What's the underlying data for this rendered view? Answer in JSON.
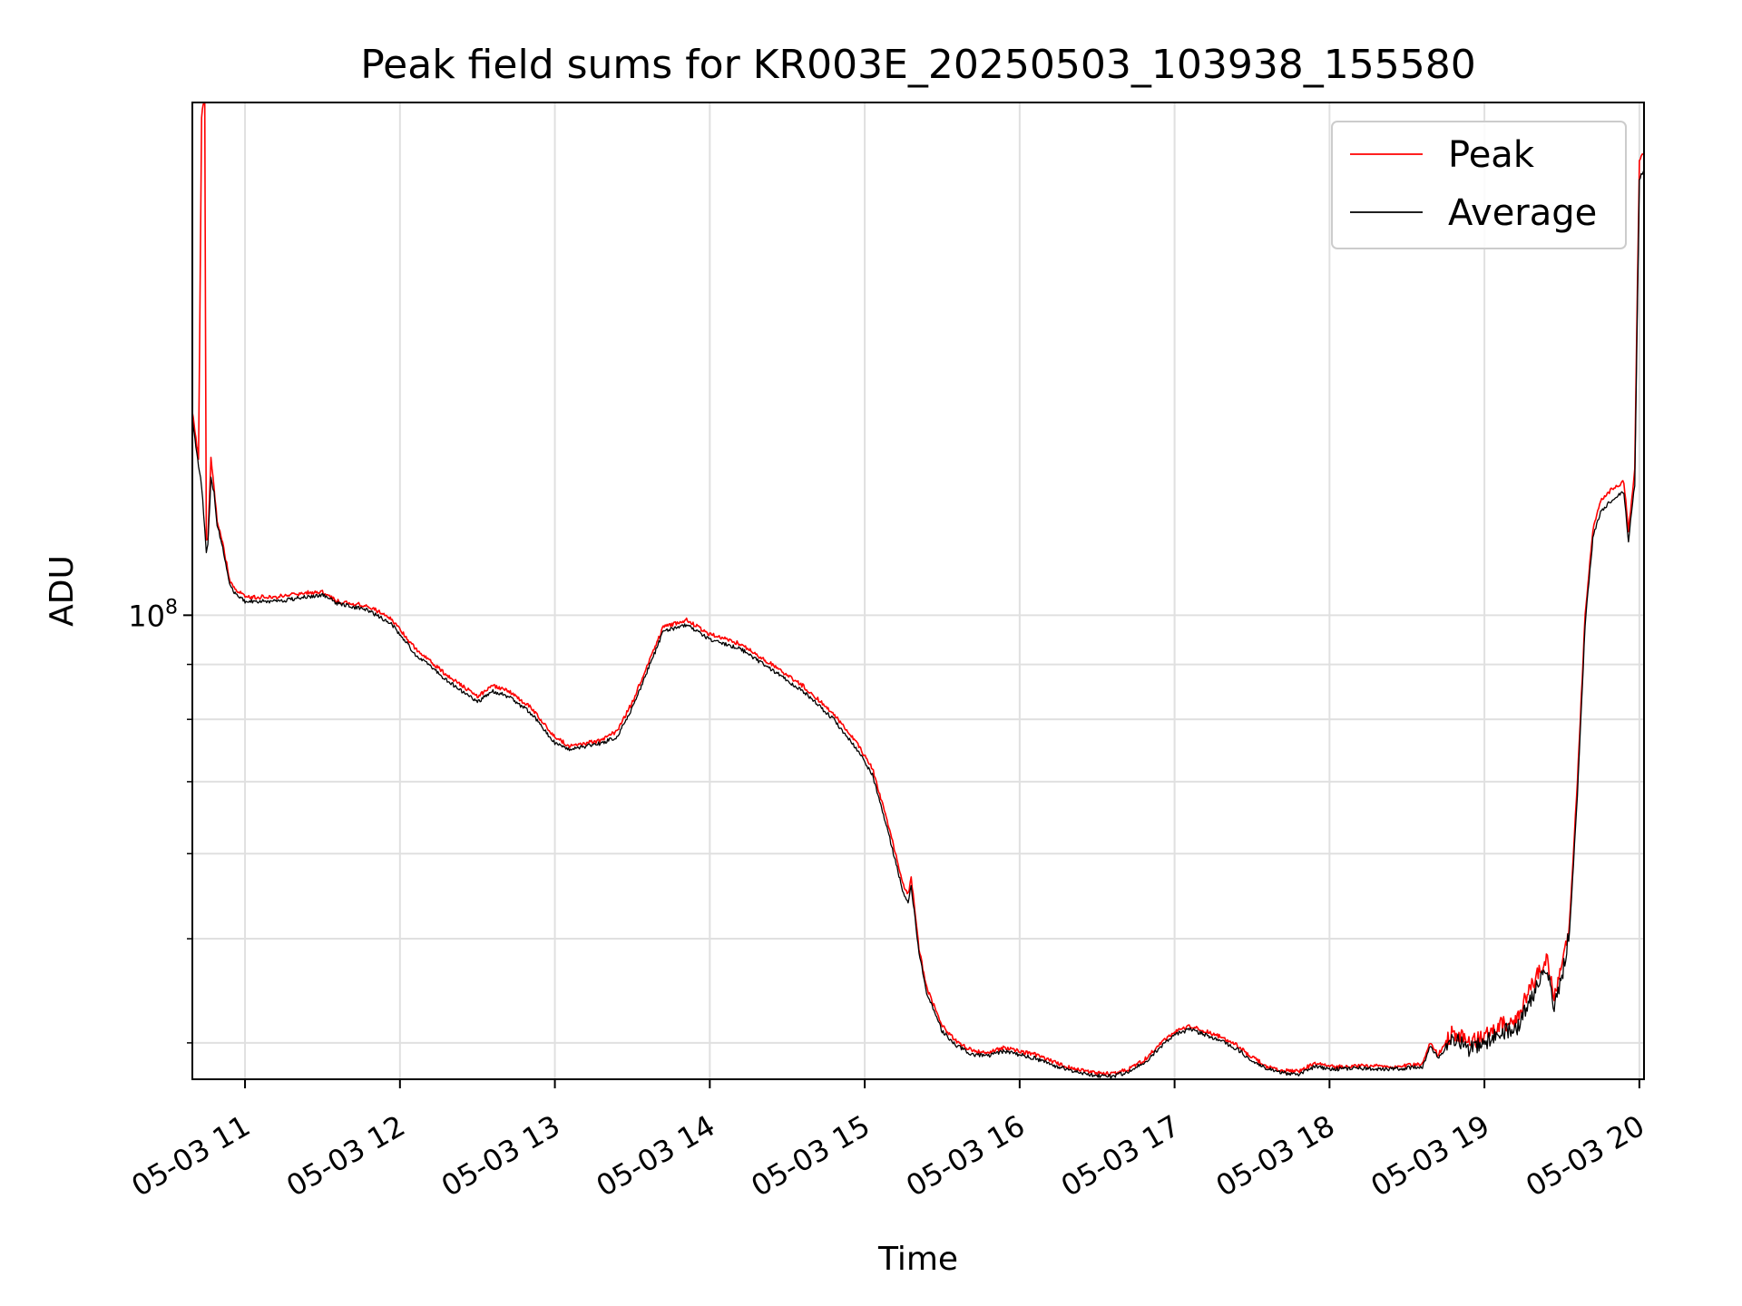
{
  "chart_data": {
    "type": "line",
    "title": "Peak field sums for KR003E_20250503_103938_155580",
    "xlabel": "Time",
    "ylabel": "ADU",
    "yscale": "log",
    "grid": true,
    "legend_position": "top-right",
    "xlim": [
      10.66,
      20.03
    ],
    "ylim": [
      37000000,
      300000000
    ],
    "x_ticks": [
      11,
      12,
      13,
      14,
      15,
      16,
      17,
      18,
      19,
      20
    ],
    "x_tick_labels": [
      "05-03 11",
      "05-03 12",
      "05-03 13",
      "05-03 14",
      "05-03 15",
      "05-03 16",
      "05-03 17",
      "05-03 18",
      "05-03 19",
      "05-03 20"
    ],
    "y_major_ticks": [
      100000000
    ],
    "y_major_tick_base": "10",
    "y_major_tick_exp": "8",
    "y_minor_ticks": [
      40000000,
      50000000,
      60000000,
      70000000,
      80000000,
      90000000
    ],
    "series": [
      {
        "name": "Peak",
        "color": "#ff0000",
        "x": [
          10.66,
          10.7,
          10.72,
          10.73,
          10.74,
          10.75,
          10.76,
          10.78,
          10.8,
          10.82,
          10.85,
          10.9,
          10.93,
          11.0,
          11.2,
          11.4,
          11.5,
          11.6,
          11.8,
          11.95,
          12.1,
          12.3,
          12.4,
          12.5,
          12.6,
          12.7,
          12.85,
          13.0,
          13.1,
          13.2,
          13.3,
          13.4,
          13.5,
          13.6,
          13.7,
          13.85,
          14.0,
          14.2,
          14.4,
          14.6,
          14.8,
          14.95,
          15.05,
          15.15,
          15.25,
          15.28,
          15.3,
          15.35,
          15.4,
          15.5,
          15.6,
          15.7,
          15.8,
          15.9,
          16.0,
          16.1,
          16.2,
          16.3,
          16.4,
          16.5,
          16.6,
          16.7,
          16.8,
          16.9,
          17.0,
          17.1,
          17.2,
          17.3,
          17.4,
          17.5,
          17.6,
          17.7,
          17.8,
          17.9,
          18.0,
          18.2,
          18.4,
          18.6,
          18.65,
          18.7,
          18.8,
          18.9,
          19.0,
          19.1,
          19.2,
          19.3,
          19.4,
          19.45,
          19.5,
          19.55,
          19.6,
          19.65,
          19.7,
          19.75,
          19.8,
          19.85,
          19.9,
          19.93,
          19.95,
          19.97,
          20.0,
          20.03
        ],
        "values": [
          155000000,
          140000000,
          290000000,
          300000000,
          300000000,
          118000000,
          118000000,
          140000000,
          132000000,
          122000000,
          118000000,
          108000000,
          106000000,
          104000000,
          104000000,
          105000000,
          105000000,
          103000000,
          102000000,
          99000000,
          93000000,
          88000000,
          86000000,
          84000000,
          86000000,
          85000000,
          82000000,
          77000000,
          75500000,
          76000000,
          76500000,
          78000000,
          83000000,
          90000000,
          97500000,
          99000000,
          96000000,
          94000000,
          90000000,
          86000000,
          81000000,
          76000000,
          72000000,
          64000000,
          56000000,
          55000000,
          57000000,
          49000000,
          45000000,
          41500000,
          40000000,
          39300000,
          39200000,
          39600000,
          39300000,
          39000000,
          38500000,
          38000000,
          37700000,
          37500000,
          37400000,
          37800000,
          38500000,
          39800000,
          41000000,
          41500000,
          41000000,
          40500000,
          39800000,
          38800000,
          38000000,
          37700000,
          37600000,
          38300000,
          38000000,
          38100000,
          38000000,
          38200000,
          40000000,
          39000000,
          41000000,
          40000000,
          40500000,
          41500000,
          42000000,
          45000000,
          48000000,
          44000000,
          47000000,
          52000000,
          70000000,
          100000000,
          120000000,
          128000000,
          130000000,
          132000000,
          133000000,
          120000000,
          128000000,
          137000000,
          265000000,
          270000000
        ]
      },
      {
        "name": "Average",
        "color": "#000000",
        "x": [
          10.66,
          10.7,
          10.72,
          10.74,
          10.75,
          10.76,
          10.78,
          10.8,
          10.82,
          10.85,
          10.9,
          10.93,
          11.0,
          11.2,
          11.4,
          11.5,
          11.6,
          11.8,
          11.95,
          12.1,
          12.3,
          12.4,
          12.5,
          12.6,
          12.7,
          12.85,
          13.0,
          13.1,
          13.2,
          13.3,
          13.4,
          13.5,
          13.6,
          13.7,
          13.85,
          14.0,
          14.2,
          14.4,
          14.6,
          14.8,
          14.95,
          15.05,
          15.15,
          15.25,
          15.28,
          15.3,
          15.35,
          15.4,
          15.5,
          15.6,
          15.7,
          15.8,
          15.9,
          16.0,
          16.1,
          16.2,
          16.3,
          16.4,
          16.5,
          16.6,
          16.7,
          16.8,
          16.9,
          17.0,
          17.1,
          17.2,
          17.3,
          17.4,
          17.5,
          17.6,
          17.7,
          17.8,
          17.9,
          18.0,
          18.2,
          18.4,
          18.6,
          18.65,
          18.7,
          18.8,
          18.9,
          19.0,
          19.1,
          19.2,
          19.3,
          19.4,
          19.45,
          19.5,
          19.55,
          19.6,
          19.65,
          19.7,
          19.75,
          19.8,
          19.85,
          19.9,
          19.93,
          19.95,
          19.97,
          20.0,
          20.03
        ],
        "values": [
          152000000,
          138000000,
          132000000,
          120000000,
          114000000,
          116000000,
          134000000,
          130000000,
          121000000,
          117000000,
          107000000,
          105000000,
          103000000,
          103000000,
          104000000,
          104500000,
          102500000,
          101000000,
          98000000,
          92000000,
          87000000,
          85000000,
          83000000,
          85000000,
          84000000,
          81000000,
          76000000,
          75000000,
          75500000,
          76000000,
          77000000,
          82000000,
          89000000,
          96500000,
          98000000,
          95000000,
          93000000,
          89000000,
          85000000,
          80000000,
          75000000,
          71000000,
          63000000,
          55000000,
          54000000,
          56000000,
          48500000,
          44500000,
          41000000,
          39700000,
          39000000,
          38900000,
          39300000,
          39000000,
          38700000,
          38200000,
          37800000,
          37500000,
          37300000,
          37200000,
          37600000,
          38300000,
          39500000,
          40700000,
          41200000,
          40700000,
          40200000,
          39500000,
          38500000,
          37800000,
          37500000,
          37400000,
          38000000,
          37800000,
          37900000,
          37800000,
          38000000,
          39700000,
          38700000,
          40500000,
          39500000,
          40000000,
          41000000,
          41000000,
          44000000,
          47000000,
          43000000,
          46000000,
          51000000,
          68000000,
          98000000,
          118000000,
          125000000,
          127000000,
          129000000,
          130000000,
          117000000,
          125000000,
          132000000,
          255000000,
          260000000
        ]
      }
    ]
  }
}
